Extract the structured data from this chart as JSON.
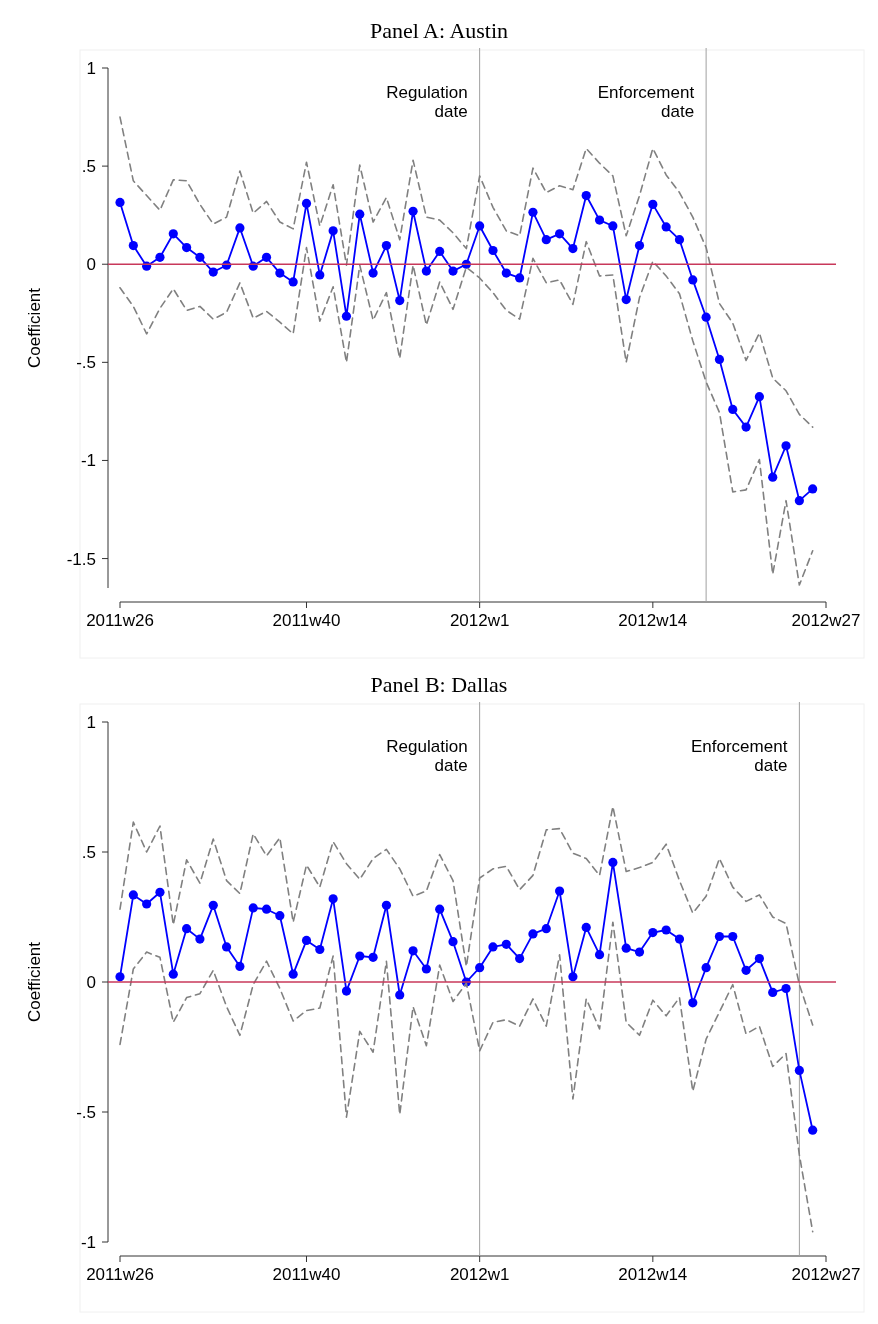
{
  "chart_data": [
    {
      "type": "line",
      "title": "Panel A: Austin",
      "ylabel": "Coefficient",
      "ylim": [
        -1.65,
        1
      ],
      "yticks": [
        {
          "value": -1.5,
          "label": "-1.5"
        },
        {
          "value": -1,
          "label": "-1"
        },
        {
          "value": -0.5,
          "label": "-.5"
        },
        {
          "value": 0,
          "label": "0"
        },
        {
          "value": 0.5,
          "label": ".5"
        },
        {
          "value": 1,
          "label": "1"
        }
      ],
      "categories": [
        "2011w26",
        null,
        null,
        null,
        null,
        null,
        null,
        null,
        null,
        null,
        null,
        null,
        null,
        null,
        "2011w40",
        null,
        null,
        null,
        null,
        null,
        null,
        null,
        null,
        null,
        null,
        null,
        null,
        "2012w1",
        null,
        null,
        null,
        null,
        null,
        null,
        null,
        null,
        null,
        null,
        null,
        null,
        "2012w14",
        null,
        null,
        null,
        null,
        null,
        null,
        null,
        null,
        null,
        null,
        null,
        null,
        "2012w27"
      ],
      "series": [
        {
          "color": "#0000ff",
          "marker": "circle",
          "line_style": "solid",
          "values": [
            0.315,
            0.095,
            -0.01,
            0.035,
            0.155,
            0.085,
            0.035,
            -0.04,
            -0.005,
            0.185,
            -0.01,
            0.035,
            -0.045,
            -0.09,
            0.31,
            -0.055,
            0.17,
            -0.265,
            0.255,
            -0.045,
            0.095,
            -0.185,
            0.27,
            -0.035,
            0.065,
            -0.035,
            0.0,
            0.195,
            0.07,
            -0.045,
            -0.07,
            0.265,
            0.125,
            0.155,
            0.08,
            0.35,
            0.225,
            0.195,
            -0.18,
            0.095,
            0.305,
            0.19,
            0.125,
            -0.08,
            -0.27,
            -0.485,
            -0.74,
            -0.83,
            -0.675,
            -1.085,
            -0.925,
            -1.205,
            -1.145,
            null
          ]
        },
        {
          "color": "#808080",
          "marker": "none",
          "line_style": "dashed",
          "values": [
            0.75,
            0.425,
            0.35,
            0.275,
            0.43,
            0.425,
            0.305,
            0.205,
            0.24,
            0.475,
            0.26,
            0.32,
            0.215,
            0.18,
            0.52,
            0.195,
            0.405,
            -0.005,
            0.505,
            0.215,
            0.34,
            0.125,
            0.53,
            0.24,
            0.225,
            0.16,
            0.08,
            0.45,
            0.29,
            0.17,
            0.145,
            0.49,
            0.365,
            0.4,
            0.38,
            0.59,
            0.515,
            0.45,
            0.145,
            0.35,
            0.59,
            0.455,
            0.365,
            0.24,
            0.085,
            -0.2,
            -0.3,
            -0.49,
            -0.35,
            -0.58,
            -0.645,
            -0.765,
            -0.83,
            null
          ]
        },
        {
          "color": "#808080",
          "marker": "none",
          "line_style": "dashed",
          "values": [
            -0.12,
            -0.215,
            -0.355,
            -0.225,
            -0.125,
            -0.235,
            -0.215,
            -0.28,
            -0.245,
            -0.095,
            -0.275,
            -0.24,
            -0.295,
            -0.355,
            0.085,
            -0.29,
            -0.115,
            -0.5,
            -0.005,
            -0.285,
            -0.145,
            -0.48,
            -0.005,
            -0.31,
            -0.09,
            -0.23,
            -0.015,
            -0.07,
            -0.145,
            -0.235,
            -0.28,
            0.03,
            -0.095,
            -0.08,
            -0.205,
            0.115,
            -0.06,
            -0.055,
            -0.5,
            -0.17,
            0.015,
            -0.06,
            -0.15,
            -0.39,
            -0.6,
            -0.755,
            -1.16,
            -1.15,
            -0.995,
            -1.58,
            -1.205,
            -1.635,
            -1.46,
            null
          ]
        }
      ],
      "annotations": [
        "Regulation date",
        "Enforcement date"
      ],
      "ref_lines": [
        {
          "axis": "y",
          "value": 0,
          "color": "#c8385a"
        }
      ]
    },
    {
      "type": "line",
      "title": "Panel B: Dallas",
      "ylabel": "Coefficient",
      "ylim": [
        -1,
        1
      ],
      "yticks": [
        {
          "value": -1,
          "label": "-1"
        },
        {
          "value": -0.5,
          "label": "-.5"
        },
        {
          "value": 0,
          "label": "0"
        },
        {
          "value": 0.5,
          "label": ".5"
        },
        {
          "value": 1,
          "label": "1"
        }
      ],
      "categories": [
        "2011w26",
        null,
        null,
        null,
        null,
        null,
        null,
        null,
        null,
        null,
        null,
        null,
        null,
        null,
        "2011w40",
        null,
        null,
        null,
        null,
        null,
        null,
        null,
        null,
        null,
        null,
        null,
        null,
        "2012w1",
        null,
        null,
        null,
        null,
        null,
        null,
        null,
        null,
        null,
        null,
        null,
        null,
        "2012w14",
        null,
        null,
        null,
        null,
        null,
        null,
        null,
        null,
        null,
        null,
        null,
        null,
        "2012w27"
      ],
      "series": [
        {
          "color": "#0000ff",
          "marker": "circle",
          "line_style": "solid",
          "values": [
            0.02,
            0.335,
            0.3,
            0.345,
            0.03,
            0.205,
            0.165,
            0.295,
            0.135,
            0.06,
            0.285,
            0.28,
            0.255,
            0.03,
            0.16,
            0.125,
            0.32,
            -0.035,
            0.1,
            0.095,
            0.295,
            -0.05,
            0.12,
            0.05,
            0.28,
            0.155,
            0.0,
            0.055,
            0.135,
            0.145,
            0.09,
            0.185,
            0.205,
            0.35,
            0.02,
            0.21,
            0.105,
            0.46,
            0.13,
            0.115,
            0.19,
            0.2,
            0.165,
            -0.08,
            0.055,
            0.175,
            0.175,
            0.045,
            0.09,
            -0.04,
            -0.025,
            -0.34,
            -0.57,
            null
          ]
        },
        {
          "color": "#808080",
          "marker": "none",
          "line_style": "dashed",
          "values": [
            0.28,
            0.615,
            0.5,
            0.6,
            0.22,
            0.47,
            0.38,
            0.55,
            0.39,
            0.34,
            0.57,
            0.485,
            0.555,
            0.23,
            0.45,
            0.365,
            0.54,
            0.455,
            0.395,
            0.475,
            0.51,
            0.435,
            0.33,
            0.35,
            0.49,
            0.39,
            0.06,
            0.4,
            0.435,
            0.445,
            0.355,
            0.41,
            0.585,
            0.59,
            0.495,
            0.475,
            0.41,
            0.675,
            0.425,
            0.44,
            0.46,
            0.53,
            0.39,
            0.265,
            0.33,
            0.475,
            0.365,
            0.31,
            0.335,
            0.25,
            0.225,
            -0.01,
            -0.165,
            null
          ]
        },
        {
          "color": "#808080",
          "marker": "none",
          "line_style": "dashed",
          "values": [
            -0.24,
            0.05,
            0.115,
            0.095,
            -0.155,
            -0.06,
            -0.045,
            0.045,
            -0.095,
            -0.205,
            -0.01,
            0.08,
            -0.025,
            -0.15,
            -0.11,
            -0.1,
            0.1,
            -0.52,
            -0.19,
            -0.27,
            0.08,
            -0.51,
            -0.095,
            -0.245,
            0.065,
            -0.075,
            -0.005,
            -0.265,
            -0.155,
            -0.145,
            -0.17,
            -0.065,
            -0.17,
            0.105,
            -0.45,
            -0.065,
            -0.18,
            0.23,
            -0.155,
            -0.205,
            -0.07,
            -0.13,
            -0.06,
            -0.42,
            -0.22,
            -0.115,
            -0.01,
            -0.2,
            -0.17,
            -0.325,
            -0.275,
            -0.665,
            -0.96,
            null
          ]
        }
      ],
      "annotations": [
        "Regulation date",
        "Enforcement date"
      ],
      "ref_lines": [
        {
          "axis": "y",
          "value": 0,
          "color": "#c8385a"
        }
      ]
    }
  ]
}
